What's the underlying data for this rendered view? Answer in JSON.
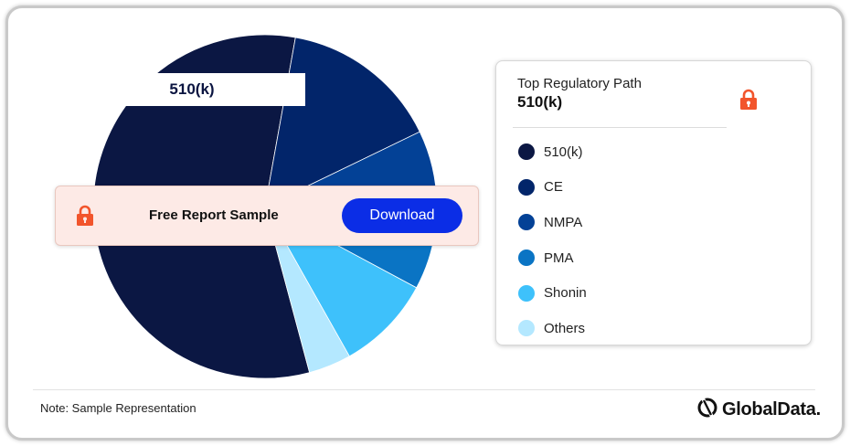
{
  "chart_data": {
    "type": "pie",
    "title": "",
    "categories": [
      "510(k)",
      "CE",
      "NMPA",
      "PMA",
      "Shonin",
      "Others"
    ],
    "values": [
      57,
      15,
      7,
      8,
      9,
      4
    ],
    "colors": [
      "#0b1743",
      "#02256a",
      "#034196",
      "#0a74c4",
      "#3ec1fb",
      "#b4e8ff"
    ],
    "legend": "right",
    "callout_label": "510(k)"
  },
  "panel": {
    "label": "Top Regulatory Path",
    "value": "510(k)"
  },
  "sample": {
    "text": "Free Report Sample",
    "button": "Download"
  },
  "footer": {
    "note": "Note: Sample Representation",
    "brand": "GlobalData."
  },
  "icons": {
    "lock": "lock-icon",
    "logo": "globaldata-logo-icon"
  },
  "accent_color": "#f2552c"
}
